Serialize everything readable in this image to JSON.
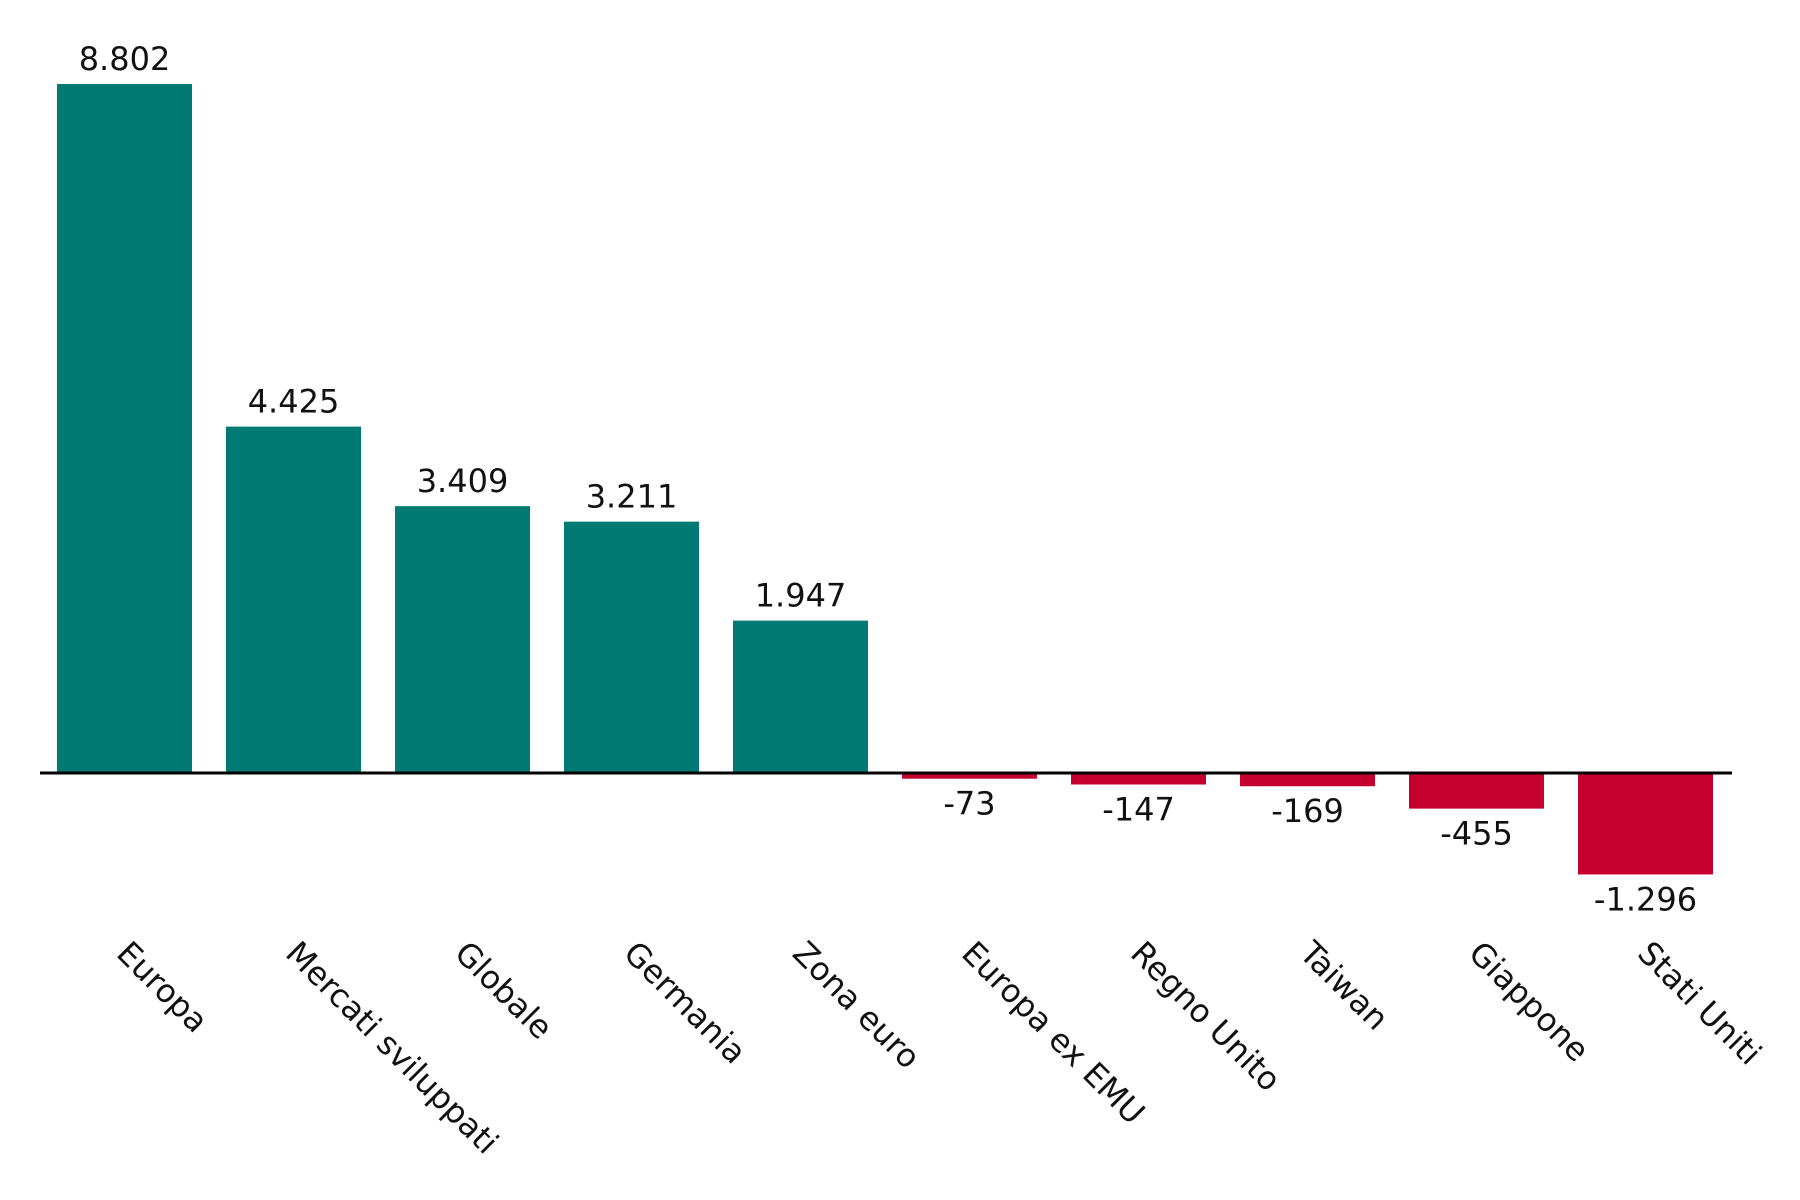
{
  "chart_data": {
    "type": "bar",
    "title": "",
    "xlabel": "",
    "ylabel": "",
    "categories": [
      "Europa",
      "Mercati sviluppati",
      "Globale",
      "Germania",
      "Zona euro",
      "Europa ex EMU",
      "Regno Unito",
      "Taiwan",
      "Giappone",
      "Stati Uniti"
    ],
    "values": [
      8802,
      4425,
      3409,
      3211,
      1947,
      -73,
      -147,
      -169,
      -455,
      -1296
    ],
    "value_labels": [
      "8.802",
      "4.425",
      "3.409",
      "3.211",
      "1.947",
      "-73",
      "-147",
      "-169",
      "-455",
      "-1.296"
    ],
    "ylim": [
      -1296,
      8802
    ],
    "grid": false,
    "legend": "none",
    "colors": {
      "positive": "#007A72",
      "negative": "#C5002E",
      "axis": "#000000"
    }
  }
}
